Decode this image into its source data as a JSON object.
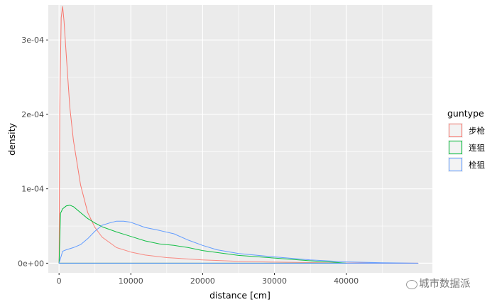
{
  "chart_data": {
    "type": "line",
    "xlabel": "distance [cm]",
    "ylabel": "density",
    "xlim": [
      -1500,
      52000
    ],
    "ylim": [
      -1.3e-05,
      0.000347
    ],
    "x_ticks": [
      0,
      10000,
      20000,
      30000,
      40000
    ],
    "x_tick_labels": [
      "0",
      "10000",
      "20000",
      "30000",
      "40000"
    ],
    "y_ticks": [
      0,
      0.0001,
      0.0002,
      0.0003
    ],
    "y_tick_labels": [
      "0e+00",
      "1e-04",
      "2e-04",
      "3e-04"
    ],
    "grid": true,
    "legend": {
      "title": "guntype",
      "position": "right"
    },
    "series": [
      {
        "name": "步枪",
        "color": "#F8766D",
        "x": [
          0,
          100,
          300,
          500,
          700,
          1000,
          1500,
          2000,
          3000,
          4000,
          5000,
          6000,
          8000,
          10000,
          12000,
          15000,
          20000,
          25000,
          30000,
          35000,
          40000,
          50000
        ],
        "y": [
          0,
          0.00021,
          0.00033,
          0.000345,
          0.000325,
          0.00028,
          0.00021,
          0.000165,
          0.000105,
          6.8e-05,
          4.8e-05,
          3.5e-05,
          2.1e-05,
          1.5e-05,
          1.1e-05,
          7.5e-06,
          4.5e-06,
          2.5e-06,
          1.5e-06,
          8e-07,
          3e-07,
          0
        ]
      },
      {
        "name": "连狙",
        "color": "#00BA38",
        "x": [
          0,
          200,
          500,
          1000,
          1500,
          2000,
          3000,
          4000,
          5000,
          6000,
          8000,
          10000,
          12000,
          14000,
          16000,
          18000,
          20000,
          25000,
          30000,
          35000,
          38000,
          40000
        ],
        "y": [
          0,
          6.7e-05,
          7.3e-05,
          7.7e-05,
          7.8e-05,
          7.6e-05,
          6.8e-05,
          6e-05,
          5.4e-05,
          4.9e-05,
          4.2e-05,
          3.6e-05,
          3e-05,
          2.6e-05,
          2.4e-05,
          2.1e-05,
          1.7e-05,
          1.05e-05,
          7e-06,
          3.2e-06,
          1.5e-06,
          0
        ]
      },
      {
        "name": "栓狙",
        "color": "#619CFF",
        "x": [
          0,
          500,
          1000,
          2000,
          3000,
          4000,
          5000,
          6000,
          7000,
          8000,
          9000,
          10000,
          11000,
          12000,
          14000,
          16000,
          18000,
          20000,
          22000,
          25000,
          30000,
          35000,
          40000,
          45000,
          50000
        ],
        "y": [
          0,
          1.6e-05,
          1.8e-05,
          2.1e-05,
          2.5e-05,
          3.3e-05,
          4.3e-05,
          5.1e-05,
          5.4e-05,
          5.65e-05,
          5.65e-05,
          5.5e-05,
          5.15e-05,
          4.8e-05,
          4.4e-05,
          3.95e-05,
          3.1e-05,
          2.4e-05,
          1.8e-05,
          1.3e-05,
          8.5e-06,
          4.5e-06,
          1.8e-06,
          6e-07,
          0
        ]
      }
    ]
  },
  "watermark": {
    "text": "城市数据派"
  }
}
